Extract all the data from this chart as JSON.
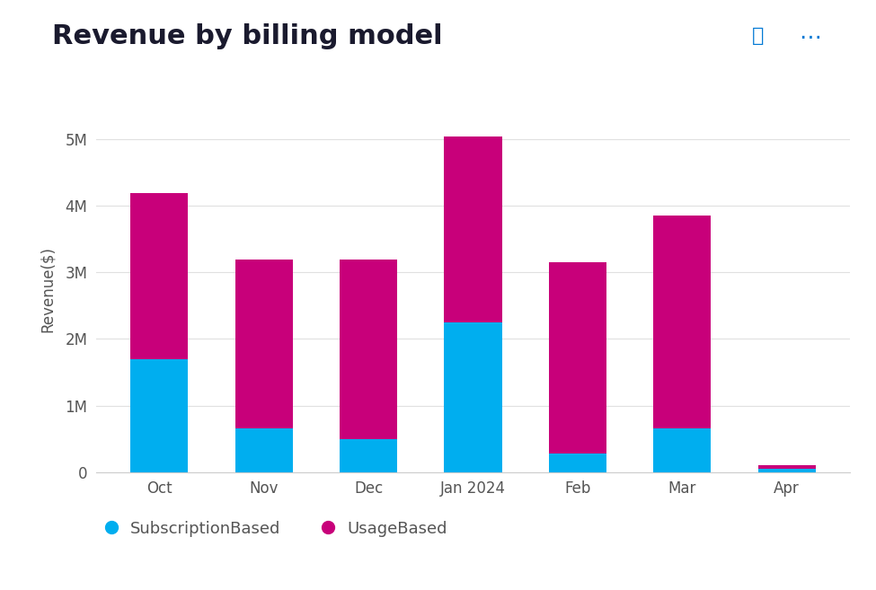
{
  "title": "Revenue by billing model",
  "ylabel": "Revenue($)",
  "categories": [
    "Oct",
    "Nov",
    "Dec",
    "Jan 2024",
    "Feb",
    "Mar",
    "Apr"
  ],
  "subscription_based": [
    1700000,
    650000,
    500000,
    2250000,
    280000,
    650000,
    50000
  ],
  "usage_based": [
    2500000,
    2550000,
    2700000,
    2800000,
    2870000,
    3200000,
    50000
  ],
  "color_subscription": "#00AEEF",
  "color_usage": "#C8007A",
  "ylim": [
    0,
    5500000
  ],
  "yticks": [
    0,
    1000000,
    2000000,
    3000000,
    4000000,
    5000000
  ],
  "ytick_labels": [
    "0",
    "1M",
    "2M",
    "3M",
    "4M",
    "5M"
  ],
  "background_color": "#FFFFFF",
  "legend_subscription": "SubscriptionBased",
  "legend_usage": "UsageBased",
  "title_fontsize": 22,
  "axis_label_fontsize": 12,
  "tick_fontsize": 12,
  "legend_fontsize": 13,
  "title_color": "#1a1a2e",
  "tick_color": "#555555",
  "grid_color": "#E0E0E0",
  "bottom_spine_color": "#CCCCCC"
}
